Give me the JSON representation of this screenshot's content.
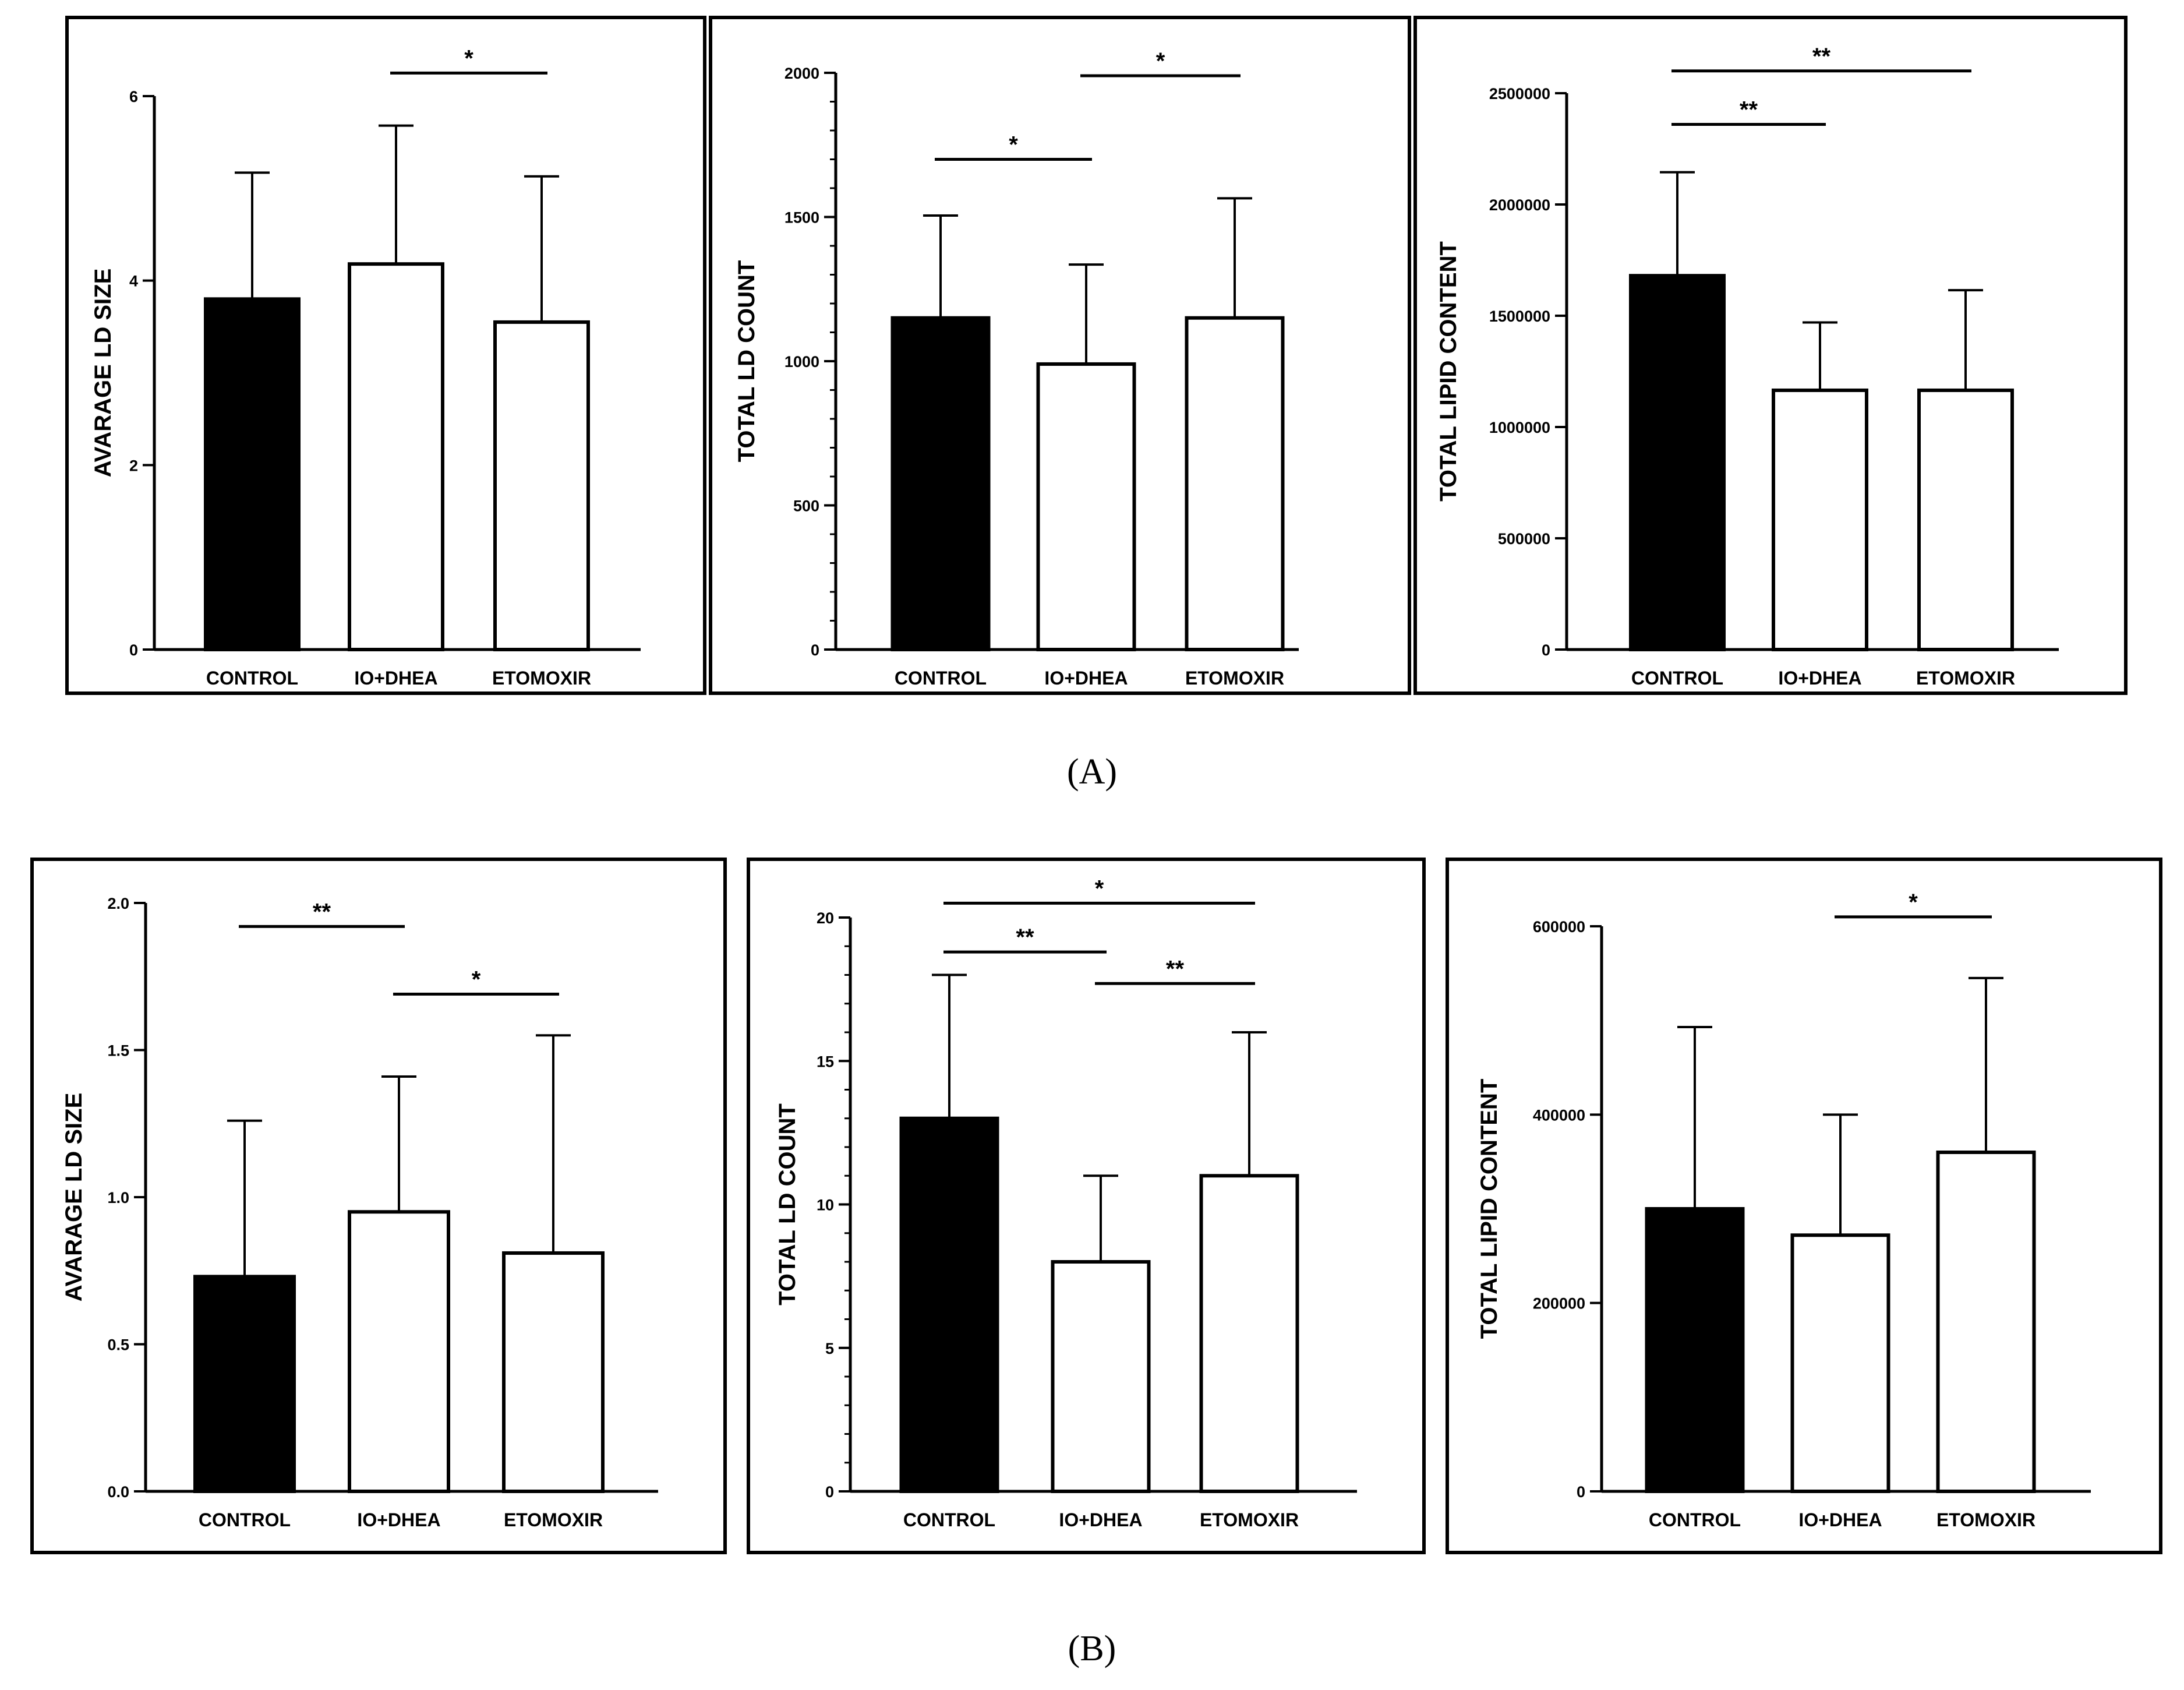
{
  "figure": {
    "panel_labels": [
      "(A)",
      "(B)"
    ],
    "colors": {
      "control_fill": "#000000",
      "treatment_fill": "#ffffff",
      "stroke": "#000000"
    }
  },
  "chart_data": [
    {
      "id": "A1",
      "type": "bar",
      "panel": "A",
      "title": "",
      "xlabel": "",
      "ylabel": "AVARAGE LD SIZE",
      "categories": [
        "CONTROL",
        "IO+DHEA",
        "ETOMOXIR"
      ],
      "values": [
        3.8,
        4.18,
        3.55
      ],
      "errors": [
        1.37,
        1.5,
        1.58
      ],
      "fills": [
        "#000000",
        "#ffffff",
        "#ffffff"
      ],
      "ylim": [
        0,
        6
      ],
      "major_ticks": [
        0,
        2,
        4,
        6
      ],
      "tick_labels": [
        "0",
        "2",
        "4",
        "6"
      ],
      "minor_per_major": 0,
      "significance": [
        {
          "from": 1,
          "to": 2,
          "label": "*",
          "y": 6.25
        }
      ]
    },
    {
      "id": "A2",
      "type": "bar",
      "panel": "A",
      "title": "",
      "xlabel": "",
      "ylabel": "TOTAL LD COUNT",
      "categories": [
        "CONTROL",
        "IO+DHEA",
        "ETOMOXIR"
      ],
      "values": [
        1150,
        990,
        1150
      ],
      "errors": [
        355,
        345,
        415
      ],
      "fills": [
        "#000000",
        "#ffffff",
        "#ffffff"
      ],
      "ylim": [
        0,
        2000
      ],
      "major_ticks": [
        0,
        500,
        1000,
        1500,
        2000
      ],
      "tick_labels": [
        "0",
        "500",
        "1000",
        "1500",
        "2000"
      ],
      "minor_per_major": 5,
      "significance": [
        {
          "from": 0,
          "to": 1,
          "label": "*",
          "y": 1700
        },
        {
          "from": 1,
          "to": 2,
          "label": "*",
          "y": 1990
        }
      ]
    },
    {
      "id": "A3",
      "type": "bar",
      "panel": "A",
      "title": "",
      "xlabel": "",
      "ylabel": "TOTAL LIPID CONTENT",
      "categories": [
        "CONTROL",
        "IO+DHEA",
        "ETOMOXIR"
      ],
      "values": [
        1680000,
        1165000,
        1165000
      ],
      "errors": [
        465000,
        305000,
        450000
      ],
      "fills": [
        "#000000",
        "#ffffff",
        "#ffffff"
      ],
      "ylim": [
        0,
        2500000
      ],
      "major_ticks": [
        0,
        500000,
        1000000,
        1500000,
        2000000,
        2500000
      ],
      "tick_labels": [
        "0",
        "500000",
        "1000000",
        "1500000",
        "2000000",
        "2500000"
      ],
      "minor_per_major": 0,
      "significance": [
        {
          "from": 0,
          "to": 1,
          "label": "**",
          "y": 2360000
        },
        {
          "from": 0,
          "to": 2,
          "label": "**",
          "y": 2600000
        }
      ]
    },
    {
      "id": "B1",
      "type": "bar",
      "panel": "B",
      "title": "",
      "xlabel": "",
      "ylabel": "AVARAGE LD SIZE",
      "categories": [
        "CONTROL",
        "IO+DHEA",
        "ETOMOXIR"
      ],
      "values": [
        0.73,
        0.95,
        0.81
      ],
      "errors": [
        0.53,
        0.46,
        0.74
      ],
      "fills": [
        "#000000",
        "#ffffff",
        "#ffffff"
      ],
      "ylim": [
        0,
        2.0
      ],
      "major_ticks": [
        0,
        0.5,
        1.0,
        1.5,
        2.0
      ],
      "tick_labels": [
        "0.0",
        "0.5",
        "1.0",
        "1.5",
        "2.0"
      ],
      "minor_per_major": 0,
      "significance": [
        {
          "from": 0,
          "to": 1,
          "label": "**",
          "y": 1.92
        },
        {
          "from": 1,
          "to": 2,
          "label": "*",
          "y": 1.69
        }
      ]
    },
    {
      "id": "B2",
      "type": "bar",
      "panel": "B",
      "title": "",
      "xlabel": "",
      "ylabel": "TOTAL LD COUNT",
      "categories": [
        "CONTROL",
        "IO+DHEA",
        "ETOMOXIR"
      ],
      "values": [
        13,
        8,
        11
      ],
      "errors": [
        5,
        3,
        5
      ],
      "fills": [
        "#000000",
        "#ffffff",
        "#ffffff"
      ],
      "ylim": [
        0,
        20
      ],
      "major_ticks": [
        0,
        5,
        10,
        15,
        20
      ],
      "tick_labels": [
        "0",
        "5",
        "10",
        "15",
        "20"
      ],
      "minor_per_major": 5,
      "significance": [
        {
          "from": 0,
          "to": 2,
          "label": "*",
          "y": 20.5
        },
        {
          "from": 0,
          "to": 1,
          "label": "**",
          "y": 18.8
        },
        {
          "from": 1,
          "to": 2,
          "label": "**",
          "y": 17.7
        }
      ]
    },
    {
      "id": "B3",
      "type": "bar",
      "panel": "B",
      "title": "",
      "xlabel": "",
      "ylabel": "TOTAL LIPID CONTENT",
      "categories": [
        "CONTROL",
        "IO+DHEA",
        "ETOMOXIR"
      ],
      "values": [
        300000,
        272000,
        360000
      ],
      "errors": [
        193000,
        128000,
        185000
      ],
      "fills": [
        "#000000",
        "#ffffff",
        "#ffffff"
      ],
      "ylim": [
        0,
        600000
      ],
      "major_ticks": [
        0,
        200000,
        400000,
        600000
      ],
      "tick_labels": [
        "0",
        "200000",
        "400000",
        "600000"
      ],
      "minor_per_major": 0,
      "significance": [
        {
          "from": 1,
          "to": 2,
          "label": "*",
          "y": 610000
        }
      ]
    }
  ]
}
